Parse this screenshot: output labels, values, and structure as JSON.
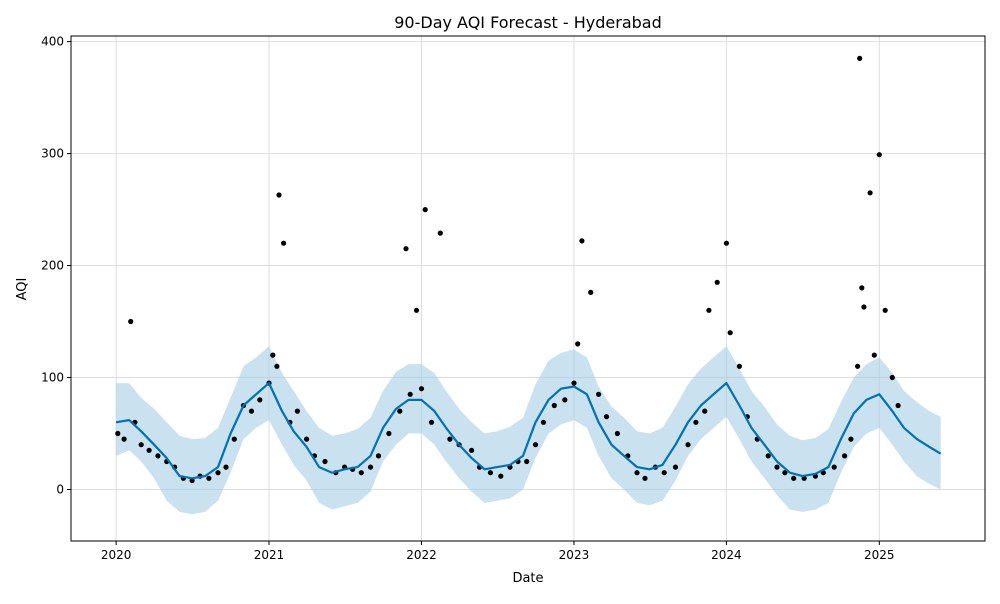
{
  "chart_data": {
    "type": "scatter",
    "title": "90-Day AQI Forecast - Hyderabad",
    "xlabel": "Date",
    "ylabel": "AQI",
    "xlim": [
      "2019-09-15",
      "2025-09-11"
    ],
    "ylim": [
      -46,
      405
    ],
    "grid": true,
    "x_ticks": [
      "2020",
      "2021",
      "2022",
      "2023",
      "2024",
      "2025"
    ],
    "y_ticks": [
      "0",
      "100",
      "200",
      "300",
      "400"
    ],
    "colors": {
      "observed": "#000000",
      "forecast": "#0072b2",
      "interval": "#a6cde5",
      "grid": "#dddddd"
    },
    "series": [
      {
        "kind": "forecast",
        "x": [
          "2020-01-01",
          "2020-02-01",
          "2020-03-01",
          "2020-04-01",
          "2020-05-01",
          "2020-06-01",
          "2020-07-01",
          "2020-08-01",
          "2020-09-01",
          "2020-10-01",
          "2020-11-01",
          "2020-12-01",
          "2021-01-01",
          "2021-02-01",
          "2021-03-01",
          "2021-04-01",
          "2021-05-01",
          "2021-06-01",
          "2021-07-01",
          "2021-08-01",
          "2021-09-01",
          "2021-10-01",
          "2021-11-01",
          "2021-12-01",
          "2022-01-01",
          "2022-02-01",
          "2022-03-01",
          "2022-04-01",
          "2022-05-01",
          "2022-06-01",
          "2022-07-01",
          "2022-08-01",
          "2022-09-01",
          "2022-10-01",
          "2022-11-01",
          "2022-12-01",
          "2023-01-01",
          "2023-02-01",
          "2023-03-01",
          "2023-04-01",
          "2023-05-01",
          "2023-06-01",
          "2023-07-01",
          "2023-08-01",
          "2023-09-01",
          "2023-10-01",
          "2023-11-01",
          "2023-12-01",
          "2024-01-01",
          "2024-02-01",
          "2024-03-01",
          "2024-04-01",
          "2024-05-01",
          "2024-06-01",
          "2024-07-01",
          "2024-08-01",
          "2024-09-01",
          "2024-10-01",
          "2024-11-01",
          "2024-12-01",
          "2025-01-01",
          "2025-02-01",
          "2025-03-01",
          "2025-04-01",
          "2025-05-01",
          "2025-05-28"
        ],
        "y": [
          60,
          62,
          52,
          40,
          28,
          12,
          10,
          12,
          20,
          50,
          75,
          85,
          95,
          70,
          52,
          38,
          20,
          15,
          18,
          20,
          30,
          55,
          72,
          80,
          80,
          70,
          55,
          40,
          28,
          18,
          20,
          22,
          30,
          60,
          80,
          90,
          92,
          85,
          60,
          40,
          30,
          20,
          18,
          22,
          40,
          60,
          75,
          85,
          95,
          75,
          55,
          40,
          25,
          15,
          12,
          14,
          20,
          45,
          68,
          80,
          85,
          70,
          55,
          45,
          38,
          32
        ],
        "lower": [
          30,
          35,
          25,
          10,
          -10,
          -20,
          -22,
          -20,
          -10,
          15,
          45,
          55,
          62,
          40,
          22,
          8,
          -12,
          -18,
          -15,
          -12,
          -2,
          25,
          40,
          50,
          50,
          40,
          25,
          10,
          -2,
          -12,
          -10,
          -8,
          0,
          28,
          50,
          58,
          62,
          55,
          30,
          10,
          0,
          -12,
          -14,
          -10,
          8,
          30,
          45,
          55,
          65,
          45,
          25,
          10,
          -5,
          -18,
          -20,
          -18,
          -12,
          15,
          38,
          50,
          55,
          40,
          25,
          12,
          5,
          0
        ],
        "upper": [
          95,
          95,
          82,
          72,
          60,
          48,
          45,
          46,
          55,
          82,
          110,
          118,
          128,
          104,
          88,
          70,
          55,
          48,
          50,
          54,
          64,
          88,
          105,
          112,
          112,
          104,
          88,
          72,
          60,
          50,
          52,
          56,
          64,
          94,
          115,
          122,
          125,
          118,
          92,
          74,
          64,
          52,
          50,
          55,
          74,
          94,
          108,
          118,
          128,
          108,
          88,
          74,
          58,
          48,
          44,
          46,
          54,
          78,
          100,
          112,
          118,
          104,
          88,
          78,
          70,
          65
        ]
      },
      {
        "kind": "observed",
        "x": [
          "2020-01-05",
          "2020-01-20",
          "2020-02-05",
          "2020-02-15",
          "2020-03-01",
          "2020-03-20",
          "2020-04-10",
          "2020-05-01",
          "2020-05-20",
          "2020-06-10",
          "2020-07-01",
          "2020-07-20",
          "2020-08-10",
          "2020-09-01",
          "2020-09-20",
          "2020-10-10",
          "2020-11-01",
          "2020-11-20",
          "2020-12-10",
          "2021-01-01",
          "2021-01-10",
          "2021-01-20",
          "2021-01-25",
          "2021-02-05",
          "2021-02-20",
          "2021-03-10",
          "2021-04-01",
          "2021-04-20",
          "2021-05-15",
          "2021-06-10",
          "2021-07-01",
          "2021-07-20",
          "2021-08-10",
          "2021-09-01",
          "2021-09-20",
          "2021-10-15",
          "2021-11-10",
          "2021-11-25",
          "2021-12-05",
          "2021-12-20",
          "2022-01-01",
          "2022-01-10",
          "2022-01-25",
          "2022-02-15",
          "2022-03-10",
          "2022-04-01",
          "2022-05-01",
          "2022-05-20",
          "2022-06-15",
          "2022-07-10",
          "2022-08-01",
          "2022-08-20",
          "2022-09-10",
          "2022-10-01",
          "2022-10-20",
          "2022-11-15",
          "2022-12-10",
          "2023-01-01",
          "2023-01-10",
          "2023-01-20",
          "2023-02-10",
          "2023-03-01",
          "2023-03-20",
          "2023-04-15",
          "2023-05-10",
          "2023-06-01",
          "2023-06-20",
          "2023-07-15",
          "2023-08-05",
          "2023-09-01",
          "2023-10-01",
          "2023-10-20",
          "2023-11-10",
          "2023-11-20",
          "2023-12-10",
          "2024-01-01",
          "2024-01-10",
          "2024-02-01",
          "2024-02-20",
          "2024-03-15",
          "2024-04-10",
          "2024-05-01",
          "2024-05-20",
          "2024-06-10",
          "2024-07-05",
          "2024-08-01",
          "2024-08-20",
          "2024-09-15",
          "2024-10-10",
          "2024-10-25",
          "2024-11-10",
          "2024-11-15",
          "2024-11-20",
          "2024-11-25",
          "2024-12-10",
          "2024-12-20",
          "2025-01-01",
          "2025-01-15",
          "2025-02-01",
          "2025-02-15"
        ],
        "y": [
          50,
          45,
          150,
          60,
          40,
          35,
          30,
          25,
          20,
          10,
          8,
          12,
          10,
          15,
          20,
          45,
          75,
          70,
          80,
          95,
          120,
          110,
          263,
          220,
          60,
          70,
          45,
          30,
          25,
          15,
          20,
          18,
          15,
          20,
          30,
          50,
          70,
          215,
          85,
          160,
          90,
          250,
          60,
          229,
          45,
          40,
          35,
          20,
          15,
          12,
          20,
          25,
          25,
          40,
          60,
          75,
          80,
          95,
          130,
          222,
          176,
          85,
          65,
          50,
          30,
          15,
          10,
          20,
          15,
          20,
          40,
          60,
          70,
          160,
          185,
          220,
          140,
          110,
          65,
          45,
          30,
          20,
          15,
          10,
          10,
          12,
          15,
          20,
          30,
          45,
          110,
          385,
          180,
          163,
          265,
          120,
          299,
          160,
          100,
          75
        ]
      }
    ]
  }
}
